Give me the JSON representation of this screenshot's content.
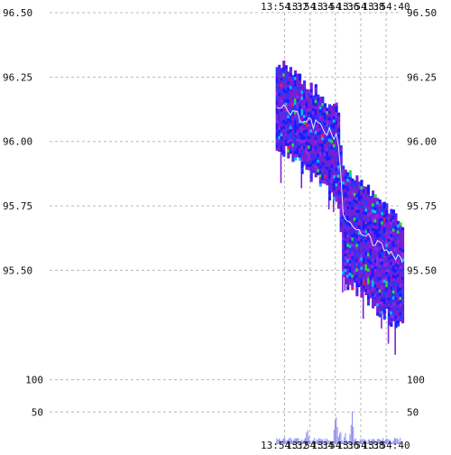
{
  "chart_data": {
    "type": "heatmap",
    "title": "",
    "xlabel": "",
    "ylabel": "",
    "x_ticks": [
      "13:54:32",
      "13:54:34",
      "13:54:36",
      "13:54:38",
      "13:54:40"
    ],
    "price_ticks": [
      "96.50",
      "96.25",
      "96.00",
      "95.75",
      "95.50"
    ],
    "price_tick_values": [
      96.5,
      96.25,
      96.0,
      95.75,
      95.5
    ],
    "price_ylim": [
      95.2,
      96.5
    ],
    "volume_ticks": [
      "100",
      "50"
    ],
    "volume_tick_values": [
      100,
      50
    ],
    "volume_ylim": [
      0,
      150
    ],
    "grid": true,
    "x_seconds_range": [
      13.5,
      41.2
    ],
    "tick_seconds": [
      32,
      34,
      36,
      38,
      40
    ],
    "price_segments": [
      {
        "t0": 31.3,
        "t1": 36.1,
        "p0": 96.14,
        "p1": 96.02,
        "hi0": 96.31,
        "hi1": 96.12,
        "lo0": 96.02,
        "lo1": 95.8
      },
      {
        "t0": 36.1,
        "t1": 36.5,
        "p0": 96.02,
        "p1": 95.8,
        "hi0": 96.12,
        "hi1": 95.92,
        "lo0": 95.8,
        "lo1": 95.55
      },
      {
        "t0": 36.5,
        "t1": 41.2,
        "p0": 95.7,
        "p1": 95.53,
        "hi0": 95.9,
        "hi1": 95.68,
        "lo0": 95.5,
        "lo1": 95.3
      }
    ],
    "colors": {
      "heat": [
        "#7a1fd6",
        "#3a2cf0",
        "#1a1aff",
        "#8a2be2",
        "#2040ff",
        "#00bfff",
        "#26e026",
        "#ff2020"
      ],
      "mid_line": "#e8e8ff",
      "volume": "#8c8cf0",
      "grid": "#b8b8b8"
    },
    "volume_profile": [
      {
        "t": 32.0,
        "v": 8
      },
      {
        "t": 33.0,
        "v": 12
      },
      {
        "t": 33.8,
        "v": 30
      },
      {
        "t": 34.5,
        "v": 10
      },
      {
        "t": 35.5,
        "v": 9
      },
      {
        "t": 36.05,
        "v": 65
      },
      {
        "t": 36.4,
        "v": 22
      },
      {
        "t": 36.8,
        "v": 18
      },
      {
        "t": 37.3,
        "v": 62
      },
      {
        "t": 38.0,
        "v": 12
      },
      {
        "t": 39.0,
        "v": 16
      },
      {
        "t": 40.0,
        "v": 9
      },
      {
        "t": 40.8,
        "v": 14
      }
    ]
  }
}
